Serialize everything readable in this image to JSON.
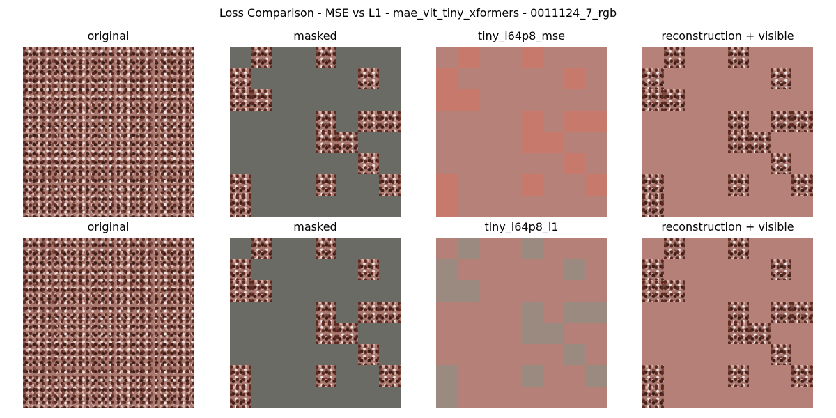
{
  "suptitle": "Loss Comparison - MSE vs L1 - mae_vit_tiny_xformers - 0011124_7_rgb",
  "rows": [
    {
      "panels": [
        {
          "title": "original",
          "kind": "original"
        },
        {
          "title": "masked",
          "kind": "masked"
        },
        {
          "title": "tiny_i64p8_mse",
          "kind": "recon-mse"
        },
        {
          "title": "reconstruction + visible",
          "kind": "recon-visible-mse"
        }
      ]
    },
    {
      "panels": [
        {
          "title": "original",
          "kind": "original"
        },
        {
          "title": "masked",
          "kind": "masked"
        },
        {
          "title": "tiny_i64p8_l1",
          "kind": "recon-l1"
        },
        {
          "title": "reconstruction + visible",
          "kind": "recon-visible-l1"
        }
      ]
    }
  ],
  "visible_patches": [
    [
      0,
      1
    ],
    [
      0,
      4
    ],
    [
      1,
      0
    ],
    [
      1,
      6
    ],
    [
      2,
      0
    ],
    [
      2,
      1
    ],
    [
      3,
      4
    ],
    [
      3,
      6
    ],
    [
      3,
      7
    ],
    [
      4,
      4
    ],
    [
      4,
      5
    ],
    [
      5,
      6
    ],
    [
      6,
      0
    ],
    [
      6,
      4
    ],
    [
      6,
      7
    ],
    [
      7,
      0
    ]
  ],
  "colors": {
    "mask_gray": "#6b6b65",
    "terrain": "#a9786e"
  }
}
